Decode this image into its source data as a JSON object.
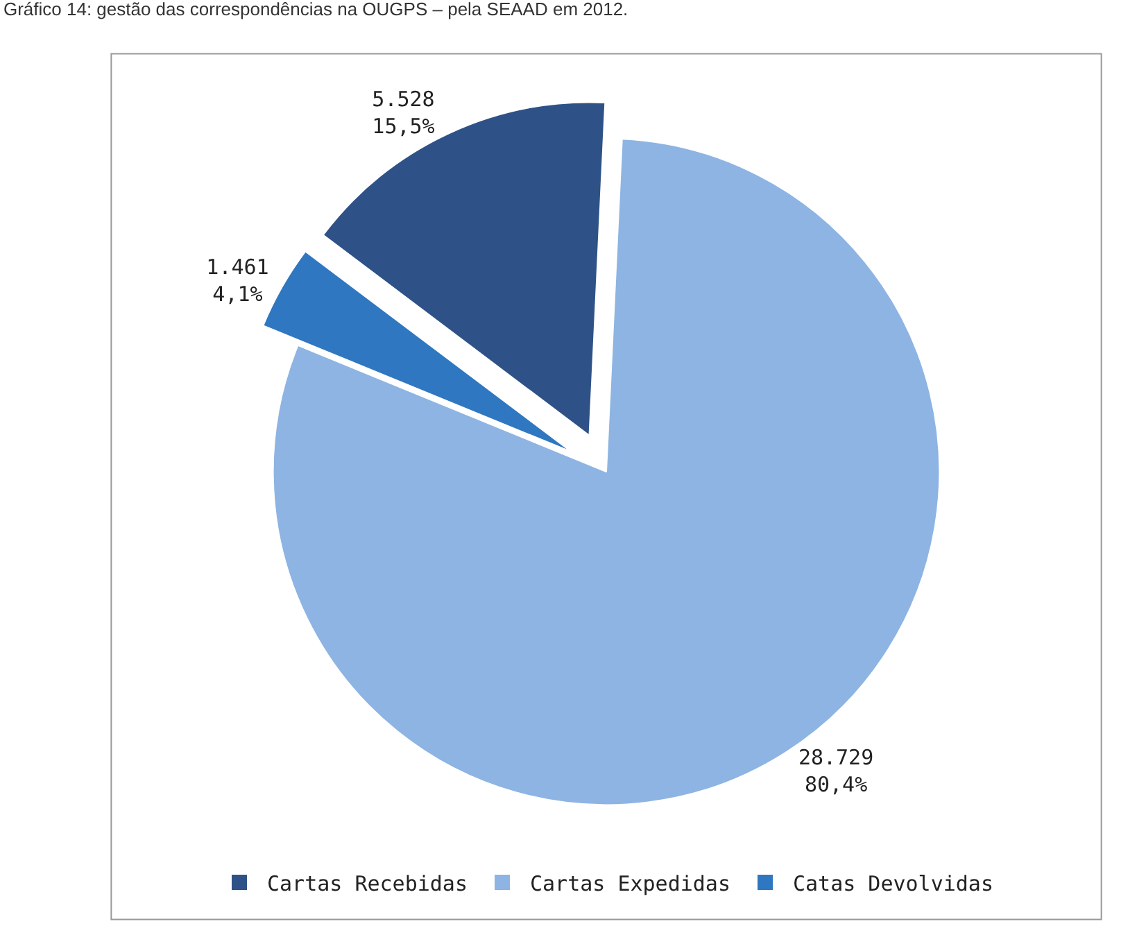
{
  "chart_data": {
    "type": "pie",
    "title": "Gráfico 14: gestão das correspondências na OUGPS – pela SEAAD em 2012.",
    "categories": [
      "Cartas Recebidas",
      "Cartas Expedidas",
      "Catas Devolvidas"
    ],
    "values": [
      5528,
      28729,
      1461
    ],
    "value_labels": [
      "5.528\n15,5%",
      "28.729\n80,4%",
      "1.461\n4,1%"
    ],
    "colors": [
      "#2e5287",
      "#8db4e2",
      "#2f77c0"
    ],
    "legend": "bottom"
  }
}
